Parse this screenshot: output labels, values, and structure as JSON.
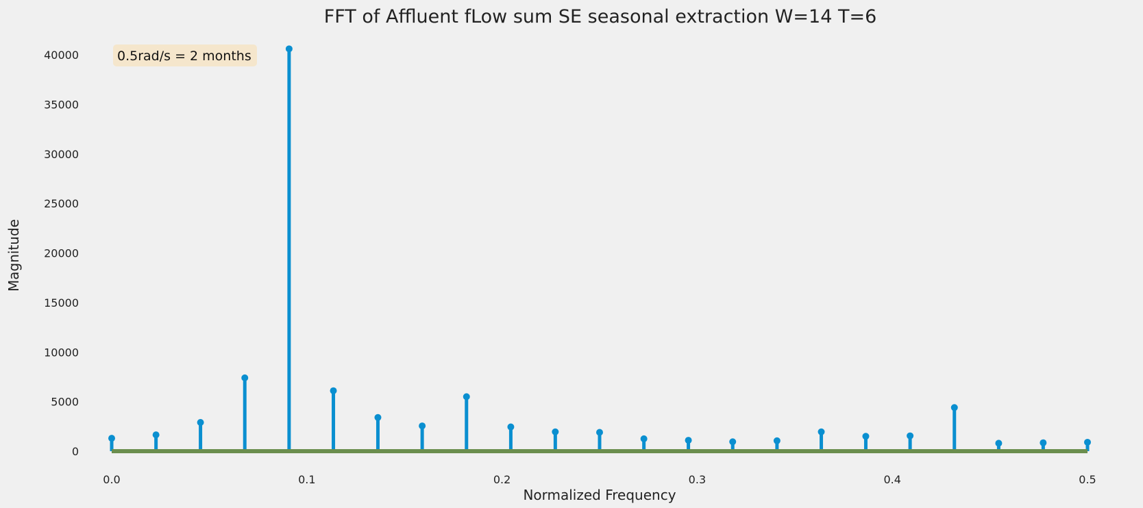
{
  "chart_data": {
    "type": "stem",
    "title": "FFT of Affluent fLow sum SE seasonal extraction W=14 T=6",
    "xlabel": "Normalized Frequency",
    "ylabel": "Magnitude",
    "xlim": [
      0.0,
      0.5
    ],
    "ylim": [
      0,
      40000
    ],
    "xticks": [
      0.0,
      0.1,
      0.2,
      0.3,
      0.4,
      0.5
    ],
    "xtick_labels": [
      "0.0",
      "0.1",
      "0.2",
      "0.3",
      "0.4",
      "0.5"
    ],
    "yticks": [
      0,
      5000,
      10000,
      15000,
      20000,
      25000,
      30000,
      35000,
      40000
    ],
    "ytick_labels": [
      "0",
      "5000",
      "10000",
      "15000",
      "20000",
      "25000",
      "30000",
      "35000",
      "40000"
    ],
    "grid": false,
    "annotation": "0.5rad/s = 2 months",
    "colors": {
      "stem": "#0a8fd0",
      "baseline": "#6b8e4e",
      "annotation_box": "#f5e6cc",
      "background": "#f0f0f0"
    },
    "x": [
      0.0,
      0.0227,
      0.0455,
      0.0682,
      0.0909,
      0.1136,
      0.1364,
      0.1591,
      0.1818,
      0.2045,
      0.2273,
      0.25,
      0.2727,
      0.2955,
      0.3182,
      0.3409,
      0.3636,
      0.3864,
      0.4091,
      0.4318,
      0.4545,
      0.4773,
      0.5
    ],
    "values": [
      1300,
      1650,
      2900,
      7400,
      40600,
      6100,
      3400,
      2550,
      5500,
      2450,
      1950,
      1900,
      1250,
      1100,
      950,
      1050,
      1950,
      1500,
      1550,
      4400,
      800,
      850,
      900
    ]
  }
}
